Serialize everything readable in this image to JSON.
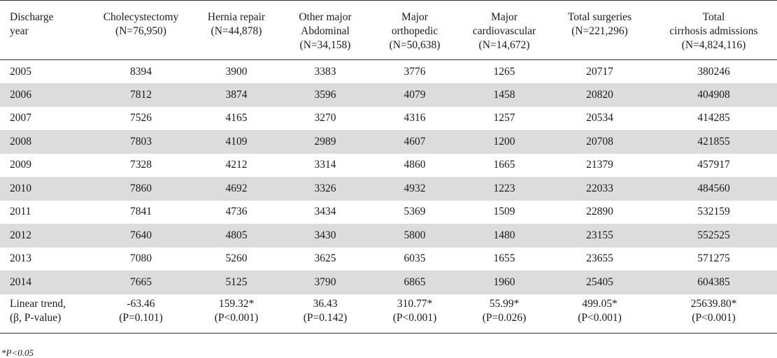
{
  "table": {
    "columns": [
      {
        "line1": "Discharge",
        "line2": "year",
        "line3": ""
      },
      {
        "line1": "Cholecystectomy",
        "line2": "(N=76,950)",
        "line3": ""
      },
      {
        "line1": "Hernia repair",
        "line2": "(N=44,878)",
        "line3": ""
      },
      {
        "line1": "Other major",
        "line2": "Abdominal",
        "line3": "(N=34,158)"
      },
      {
        "line1": "Major",
        "line2": "orthopedic",
        "line3": "(N=50,638)"
      },
      {
        "line1": "Major",
        "line2": "cardiovascular",
        "line3": "(N=14,672)"
      },
      {
        "line1": "Total surgeries",
        "line2": "(N=221,296)",
        "line3": ""
      },
      {
        "line1": "Total",
        "line2": "cirrhosis admissions",
        "line3": "(N=4,824,116)"
      }
    ],
    "rows": [
      [
        "2005",
        "8394",
        "3900",
        "3383",
        "3776",
        "1265",
        "20717",
        "380246"
      ],
      [
        "2006",
        "7812",
        "3874",
        "3596",
        "4079",
        "1458",
        "20820",
        "404908"
      ],
      [
        "2007",
        "7526",
        "4165",
        "3270",
        "4316",
        "1257",
        "20534",
        "414285"
      ],
      [
        "2008",
        "7803",
        "4109",
        "2989",
        "4607",
        "1200",
        "20708",
        "421855"
      ],
      [
        "2009",
        "7328",
        "4212",
        "3314",
        "4860",
        "1665",
        "21379",
        "457917"
      ],
      [
        "2010",
        "7860",
        "4692",
        "3326",
        "4932",
        "1223",
        "22033",
        "484560"
      ],
      [
        "2011",
        "7841",
        "4736",
        "3434",
        "5369",
        "1509",
        "22890",
        "532159"
      ],
      [
        "2012",
        "7640",
        "4805",
        "3430",
        "5800",
        "1480",
        "23155",
        "552525"
      ],
      [
        "2013",
        "7080",
        "5260",
        "3625",
        "6035",
        "1655",
        "23655",
        "571275"
      ],
      [
        "2014",
        "7665",
        "5125",
        "3790",
        "6865",
        "1960",
        "25405",
        "604385"
      ]
    ],
    "trend": [
      {
        "line1": "Linear trend,",
        "line2": "(β, P-value)"
      },
      {
        "line1": "-63.46",
        "line2": "(P=0.101)"
      },
      {
        "line1": "159.32*",
        "line2": "(P<0.001)"
      },
      {
        "line1": "36.43",
        "line2": "(P=0.142)"
      },
      {
        "line1": "310.77*",
        "line2": "(P<0.001)"
      },
      {
        "line1": "55.99*",
        "line2": "(P=0.026)"
      },
      {
        "line1": "499.05*",
        "line2": "(P<0.001)"
      },
      {
        "line1": "25639.80*",
        "line2": "(P<0.001)"
      }
    ]
  },
  "footnote": "*P<0.05"
}
